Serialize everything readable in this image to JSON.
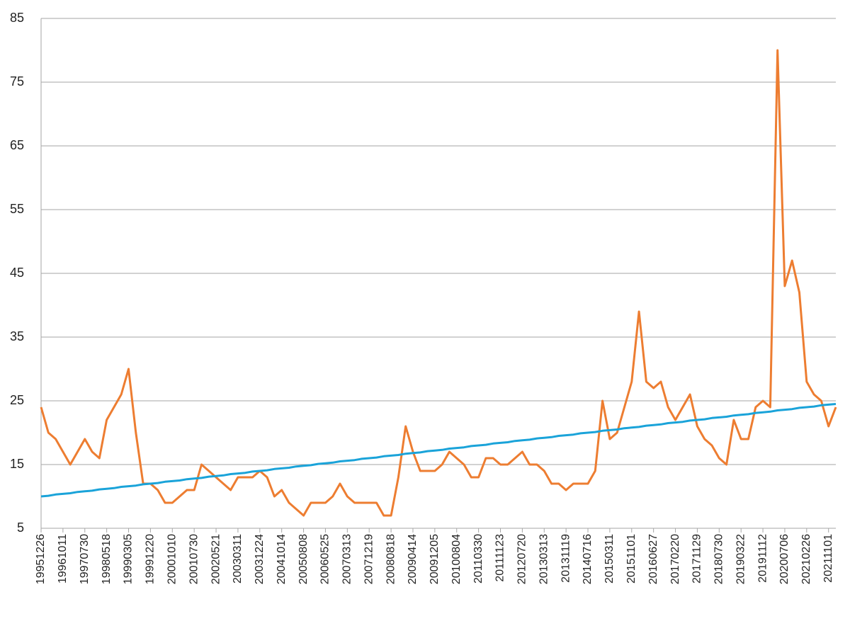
{
  "chart_data": {
    "type": "line",
    "categories": [
      "19951226",
      null,
      null,
      "19961011",
      null,
      null,
      "19970730",
      null,
      null,
      "19980518",
      null,
      null,
      "19990305",
      null,
      null,
      "19991220",
      null,
      null,
      "20001010",
      null,
      null,
      "20010730",
      null,
      null,
      "20020521",
      null,
      null,
      "20030311",
      null,
      null,
      "20031224",
      null,
      null,
      "20041014",
      null,
      null,
      "20050808",
      null,
      null,
      "20060525",
      null,
      null,
      "20070313",
      null,
      null,
      "20071219",
      null,
      null,
      "20080818",
      null,
      null,
      "20090414",
      null,
      null,
      "20091205",
      null,
      null,
      "20100804",
      null,
      null,
      "20110330",
      null,
      null,
      "20111123",
      null,
      null,
      "20120720",
      null,
      null,
      "20130313",
      null,
      null,
      "20131119",
      null,
      null,
      "20140716",
      null,
      null,
      "20150311",
      null,
      null,
      "20151101",
      null,
      null,
      "20160627",
      null,
      null,
      "20170220",
      null,
      null,
      "20171129",
      null,
      null,
      "20180730",
      null,
      null,
      "20190322",
      null,
      null,
      "20191112",
      null,
      null,
      "20200706",
      null,
      null,
      "20210226",
      null,
      null,
      "20211101",
      null
    ],
    "series": [
      {
        "color": "#ed7d31",
        "values": [
          24,
          20,
          19,
          17,
          15,
          17,
          19,
          17,
          16,
          22,
          24,
          26,
          30,
          20,
          12,
          12,
          11,
          9,
          9,
          10,
          11,
          11,
          15,
          14,
          13,
          12,
          11,
          13,
          13,
          13,
          14,
          13,
          10,
          11,
          9,
          8,
          7,
          9,
          9,
          9,
          10,
          12,
          10,
          9,
          9,
          9,
          9,
          7,
          7,
          13,
          21,
          17,
          14,
          14,
          14,
          15,
          17,
          16,
          15,
          13,
          13,
          16,
          16,
          15,
          15,
          16,
          17,
          15,
          15,
          14,
          12,
          12,
          11,
          12,
          12,
          12,
          14,
          25,
          19,
          20,
          24,
          28,
          39,
          28,
          27,
          28,
          24,
          22,
          24,
          26,
          21,
          19,
          18,
          16,
          15,
          22,
          19,
          19,
          24,
          25,
          24,
          80,
          43,
          47,
          42,
          28,
          26,
          25,
          21,
          24
        ]
      },
      {
        "color": "#1aa3d9",
        "values": [
          10.0,
          10.1,
          10.3,
          10.4,
          10.5,
          10.7,
          10.8,
          10.9,
          11.1,
          11.2,
          11.3,
          11.5,
          11.6,
          11.7,
          11.9,
          12.0,
          12.1,
          12.3,
          12.4,
          12.5,
          12.7,
          12.8,
          12.9,
          13.1,
          13.2,
          13.3,
          13.5,
          13.6,
          13.7,
          13.9,
          14.0,
          14.1,
          14.3,
          14.4,
          14.5,
          14.7,
          14.8,
          14.9,
          15.1,
          15.2,
          15.3,
          15.5,
          15.6,
          15.7,
          15.9,
          16.0,
          16.1,
          16.3,
          16.4,
          16.5,
          16.7,
          16.8,
          16.9,
          17.1,
          17.2,
          17.3,
          17.5,
          17.6,
          17.7,
          17.9,
          18.0,
          18.1,
          18.3,
          18.4,
          18.5,
          18.7,
          18.8,
          18.9,
          19.1,
          19.2,
          19.3,
          19.5,
          19.6,
          19.7,
          19.9,
          20.0,
          20.1,
          20.3,
          20.4,
          20.5,
          20.7,
          20.8,
          20.9,
          21.1,
          21.2,
          21.3,
          21.5,
          21.6,
          21.7,
          21.9,
          22.0,
          22.1,
          22.3,
          22.4,
          22.5,
          22.7,
          22.8,
          22.9,
          23.1,
          23.2,
          23.3,
          23.5,
          23.6,
          23.7,
          23.9,
          24.0,
          24.1,
          24.3,
          24.4,
          24.5
        ]
      }
    ],
    "ylim": [
      5,
      85
    ],
    "yticks": [
      5,
      15,
      25,
      35,
      45,
      55,
      65,
      75,
      85
    ],
    "grid": true
  }
}
